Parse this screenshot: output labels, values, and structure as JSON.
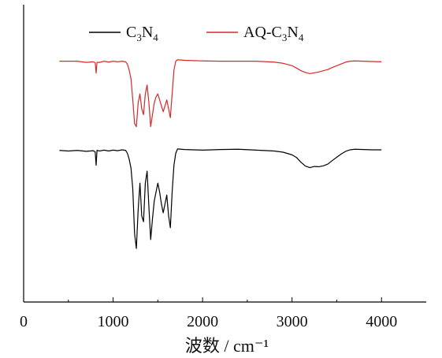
{
  "chart_data": {
    "type": "line",
    "xlabel": "波数 / cm⁻¹",
    "ylabel": "",
    "xlim": [
      0,
      4500
    ],
    "ylim": [
      0,
      1
    ],
    "x_ticks": [
      "0",
      "1000",
      "2000",
      "3000",
      "4000"
    ],
    "legend_position": "top",
    "grid": false,
    "series": [
      {
        "name": "C3N4",
        "name_base": "C",
        "name_sub1": "3",
        "name_mid": "N",
        "name_sub2": "4",
        "color": "#000000",
        "points": [
          [
            400,
            0.51
          ],
          [
            500,
            0.508
          ],
          [
            600,
            0.51
          ],
          [
            700,
            0.507
          ],
          [
            780,
            0.509
          ],
          [
            800,
            0.505
          ],
          [
            810,
            0.46
          ],
          [
            820,
            0.51
          ],
          [
            850,
            0.508
          ],
          [
            900,
            0.511
          ],
          [
            950,
            0.508
          ],
          [
            1000,
            0.511
          ],
          [
            1050,
            0.509
          ],
          [
            1100,
            0.512
          ],
          [
            1140,
            0.51
          ],
          [
            1160,
            0.5
          ],
          [
            1180,
            0.48
          ],
          [
            1200,
            0.45
          ],
          [
            1220,
            0.38
          ],
          [
            1240,
            0.23
          ],
          [
            1260,
            0.18
          ],
          [
            1280,
            0.31
          ],
          [
            1300,
            0.4
          ],
          [
            1320,
            0.29
          ],
          [
            1340,
            0.27
          ],
          [
            1360,
            0.4
          ],
          [
            1380,
            0.44
          ],
          [
            1400,
            0.32
          ],
          [
            1420,
            0.21
          ],
          [
            1440,
            0.28
          ],
          [
            1460,
            0.34
          ],
          [
            1480,
            0.37
          ],
          [
            1500,
            0.4
          ],
          [
            1520,
            0.37
          ],
          [
            1540,
            0.33
          ],
          [
            1560,
            0.3
          ],
          [
            1580,
            0.33
          ],
          [
            1600,
            0.36
          ],
          [
            1620,
            0.29
          ],
          [
            1640,
            0.25
          ],
          [
            1660,
            0.37
          ],
          [
            1680,
            0.46
          ],
          [
            1700,
            0.5
          ],
          [
            1720,
            0.515
          ],
          [
            1800,
            0.513
          ],
          [
            1900,
            0.512
          ],
          [
            2000,
            0.511
          ],
          [
            2200,
            0.513
          ],
          [
            2400,
            0.514
          ],
          [
            2600,
            0.511
          ],
          [
            2800,
            0.508
          ],
          [
            2900,
            0.504
          ],
          [
            3000,
            0.495
          ],
          [
            3050,
            0.486
          ],
          [
            3100,
            0.47
          ],
          [
            3150,
            0.457
          ],
          [
            3200,
            0.452
          ],
          [
            3250,
            0.456
          ],
          [
            3300,
            0.455
          ],
          [
            3350,
            0.458
          ],
          [
            3400,
            0.464
          ],
          [
            3450,
            0.476
          ],
          [
            3500,
            0.487
          ],
          [
            3550,
            0.498
          ],
          [
            3600,
            0.507
          ],
          [
            3650,
            0.512
          ],
          [
            3700,
            0.514
          ],
          [
            3800,
            0.513
          ],
          [
            3900,
            0.512
          ],
          [
            4000,
            0.512
          ]
        ]
      },
      {
        "name": "AQ-C3N4",
        "name_base": "AQ-C",
        "name_sub1": "3",
        "name_mid": "N",
        "name_sub2": "4",
        "color": "#d42a2a",
        "points": [
          [
            400,
            0.81
          ],
          [
            500,
            0.81
          ],
          [
            600,
            0.81
          ],
          [
            700,
            0.806
          ],
          [
            780,
            0.808
          ],
          [
            800,
            0.805
          ],
          [
            810,
            0.77
          ],
          [
            820,
            0.806
          ],
          [
            850,
            0.806
          ],
          [
            900,
            0.81
          ],
          [
            950,
            0.807
          ],
          [
            1000,
            0.81
          ],
          [
            1050,
            0.808
          ],
          [
            1100,
            0.81
          ],
          [
            1140,
            0.808
          ],
          [
            1160,
            0.8
          ],
          [
            1180,
            0.78
          ],
          [
            1200,
            0.75
          ],
          [
            1220,
            0.68
          ],
          [
            1240,
            0.6
          ],
          [
            1260,
            0.59
          ],
          [
            1280,
            0.67
          ],
          [
            1300,
            0.7
          ],
          [
            1320,
            0.65
          ],
          [
            1340,
            0.63
          ],
          [
            1360,
            0.7
          ],
          [
            1380,
            0.73
          ],
          [
            1400,
            0.67
          ],
          [
            1420,
            0.59
          ],
          [
            1440,
            0.63
          ],
          [
            1460,
            0.67
          ],
          [
            1480,
            0.69
          ],
          [
            1500,
            0.7
          ],
          [
            1520,
            0.68
          ],
          [
            1540,
            0.66
          ],
          [
            1560,
            0.64
          ],
          [
            1580,
            0.66
          ],
          [
            1600,
            0.68
          ],
          [
            1620,
            0.65
          ],
          [
            1640,
            0.62
          ],
          [
            1660,
            0.7
          ],
          [
            1680,
            0.78
          ],
          [
            1700,
            0.81
          ],
          [
            1720,
            0.815
          ],
          [
            1800,
            0.813
          ],
          [
            1900,
            0.812
          ],
          [
            2000,
            0.811
          ],
          [
            2200,
            0.81
          ],
          [
            2400,
            0.81
          ],
          [
            2600,
            0.81
          ],
          [
            2800,
            0.807
          ],
          [
            2900,
            0.803
          ],
          [
            3000,
            0.795
          ],
          [
            3050,
            0.787
          ],
          [
            3100,
            0.778
          ],
          [
            3150,
            0.772
          ],
          [
            3200,
            0.768
          ],
          [
            3250,
            0.771
          ],
          [
            3300,
            0.774
          ],
          [
            3350,
            0.778
          ],
          [
            3400,
            0.782
          ],
          [
            3450,
            0.789
          ],
          [
            3500,
            0.795
          ],
          [
            3550,
            0.801
          ],
          [
            3600,
            0.807
          ],
          [
            3650,
            0.81
          ],
          [
            3700,
            0.811
          ],
          [
            3800,
            0.81
          ],
          [
            3900,
            0.809
          ],
          [
            4000,
            0.808
          ]
        ]
      }
    ]
  }
}
